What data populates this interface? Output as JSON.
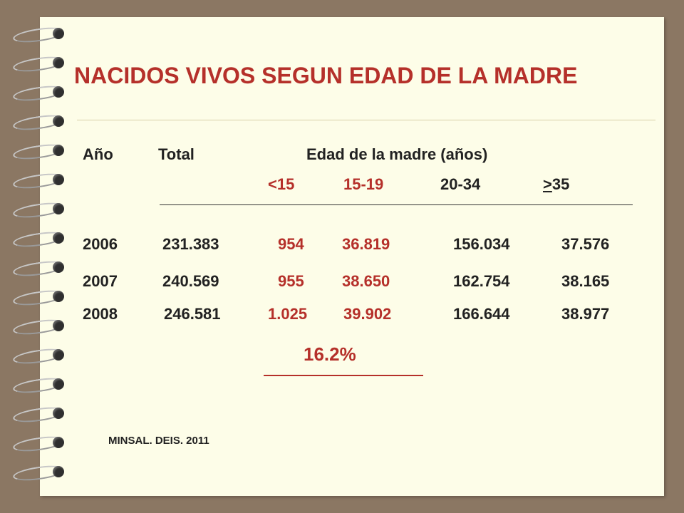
{
  "title": "NACIDOS VIVOS SEGUN EDAD DE LA MADRE",
  "header": {
    "year": "Año",
    "total": "Total",
    "age_group": "Edad de la madre (años)",
    "col_lt15": "<15",
    "col_15_19": "15-19",
    "col_20_34": "20-34",
    "col_gt35_sym": ">",
    "col_gt35_num": "35"
  },
  "rows": [
    {
      "year": "2006",
      "total": "231.383",
      "lt15": "954",
      "r15_19": "36.819",
      "r20_34": "156.034",
      "gt35": "37.576"
    },
    {
      "year": "2007",
      "total": "240.569",
      "lt15": "955",
      "r15_19": "38.650",
      "r20_34": "162.754",
      "gt35": "38.165"
    },
    {
      "year": "2008",
      "total": "246.581",
      "lt15": "1.025",
      "r15_19": "39.902",
      "r20_34": "166.644",
      "gt35": "38.977"
    }
  ],
  "percentage": "16.2%",
  "source": "MINSAL. DEIS. 2011",
  "colors": {
    "accent": "#b5302a",
    "paper": "#fdfde8",
    "background": "#8b7763"
  }
}
